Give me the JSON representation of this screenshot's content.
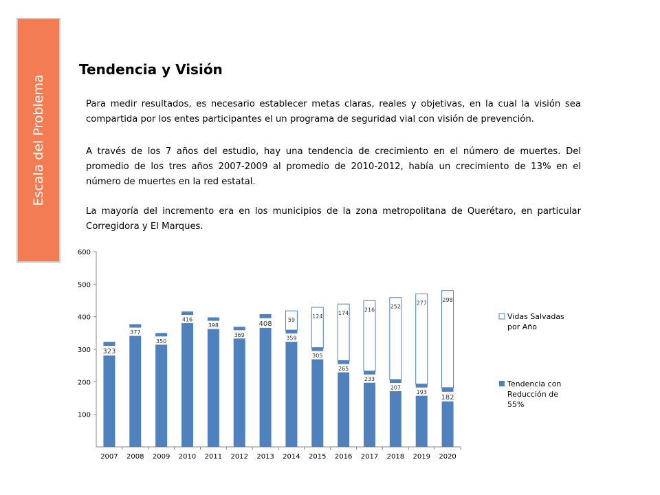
{
  "sidebar": {
    "label": "Escala del Problema"
  },
  "title": "Tendencia y Visión",
  "paragraphs": {
    "p1": "Para medir resultados, es necesario establecer metas claras, reales y objetivas, en la cual la visión sea compartida por los entes participantes el un programa de seguridad vial con visión de prevención.",
    "p2": "A través de los 7 años del estudio, hay una tendencia de crecimiento en el número de muertes.  Del promedio de los tres años 2007-2009 al promedio de 2010-2012, había un crecimiento de 13% en el número de muertes en la red estatal.",
    "p3": "La mayoría del incremento era en los municipios de la zona metropolitana de Querétaro, en particular Corregidora y El Marques."
  },
  "colors": {
    "sidebar": "#f37c52",
    "bar_fill": "#4f81bd",
    "bar_outline": "#4f81bd"
  },
  "chart_data": {
    "type": "bar",
    "stacked": true,
    "categories": [
      "2007",
      "2008",
      "2009",
      "2010",
      "2011",
      "2012",
      "2013",
      "2014",
      "2015",
      "2016",
      "2017",
      "2018",
      "2019",
      "2020"
    ],
    "series": [
      {
        "name": "Tendencia con Reducción de 55%",
        "style": "filled",
        "values": [
          323,
          377,
          350,
          416,
          398,
          369,
          408,
          359,
          305,
          265,
          233,
          207,
          193,
          182
        ]
      },
      {
        "name": "Vidas Salvadas por Año",
        "style": "outline",
        "values": [
          0,
          0,
          0,
          0,
          0,
          0,
          0,
          59,
          124,
          174,
          216,
          252,
          277,
          298
        ]
      }
    ],
    "labels": {
      "bottom": [
        "323",
        "377",
        "350",
        "416",
        "398",
        "369",
        "408",
        "359",
        "305",
        "265",
        "233",
        "207",
        "193",
        "182"
      ],
      "top": [
        "",
        "",
        "",
        "",
        "",
        "",
        "",
        "59",
        "124",
        "174",
        "216",
        "252",
        "277",
        "298"
      ]
    },
    "yticks": [
      "100",
      "200",
      "300",
      "400",
      "500",
      "600"
    ],
    "ylim": [
      0,
      600
    ],
    "legend": [
      "Vidas Salvadas por Año",
      "Tendencia con Reducción de 55%"
    ],
    "legend_position": "right",
    "grid": false
  }
}
